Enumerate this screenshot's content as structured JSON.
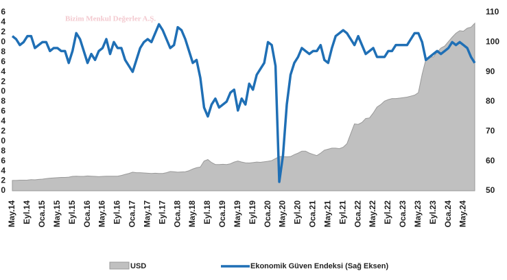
{
  "chart_data": {
    "type": "area-line",
    "watermark": "Bizim Menkul Değerler A.Ş.",
    "categories": [
      "May.14",
      null,
      null,
      null,
      "Eyl.14",
      null,
      null,
      null,
      "Oca.15",
      null,
      null,
      null,
      "May.15",
      null,
      null,
      null,
      "Eyl.15",
      null,
      null,
      null,
      "Oca.16",
      null,
      null,
      null,
      "May.16",
      null,
      null,
      null,
      "Eyl.16",
      null,
      null,
      null,
      "Oca.17",
      null,
      null,
      null,
      "May.17",
      null,
      null,
      null,
      "Eyl.17",
      null,
      null,
      null,
      "Oca.18",
      null,
      null,
      null,
      "May.18",
      null,
      null,
      null,
      "Eyl.18",
      null,
      null,
      null,
      "Oca.19",
      null,
      null,
      null,
      "May.19",
      null,
      null,
      null,
      "Eyl.19",
      null,
      null,
      null,
      "Oca.20",
      null,
      null,
      null,
      "May.20",
      null,
      null,
      null,
      "Eyl.20",
      null,
      null,
      null,
      "Oca.21",
      null,
      null,
      null,
      "May.21",
      null,
      null,
      null,
      "Eyl.21",
      null,
      null,
      null,
      "Oca.22",
      null,
      null,
      null,
      "May.22",
      null,
      null,
      null,
      "Eyl.22",
      null,
      null,
      null,
      "Oca.23",
      null,
      null,
      null,
      "May.23",
      null,
      null,
      null,
      "Eyl.23",
      null,
      null,
      null,
      "Oca.24",
      null,
      null,
      null,
      "May.24",
      null,
      null,
      null
    ],
    "series": [
      {
        "name": "USD",
        "color": "#c0c0c0",
        "values": [
          2.1,
          2.1,
          2.15,
          2.15,
          2.17,
          2.25,
          2.22,
          2.3,
          2.35,
          2.45,
          2.55,
          2.6,
          2.65,
          2.7,
          2.7,
          2.75,
          2.9,
          2.95,
          2.9,
          2.9,
          3.0,
          2.95,
          2.9,
          2.85,
          2.9,
          2.95,
          2.95,
          2.95,
          2.95,
          3.1,
          3.3,
          3.5,
          3.75,
          3.65,
          3.65,
          3.6,
          3.55,
          3.5,
          3.55,
          3.5,
          3.5,
          3.65,
          3.9,
          3.85,
          3.75,
          3.8,
          3.85,
          4.05,
          4.4,
          4.65,
          4.8,
          6.0,
          6.3,
          5.7,
          5.3,
          5.3,
          5.35,
          5.3,
          5.45,
          5.8,
          6.0,
          5.8,
          5.65,
          5.6,
          5.7,
          5.8,
          5.75,
          5.85,
          5.95,
          6.1,
          6.5,
          6.9,
          6.9,
          6.85,
          6.9,
          7.3,
          7.6,
          8.0,
          8.0,
          7.6,
          7.35,
          7.1,
          7.6,
          8.2,
          8.4,
          8.6,
          8.6,
          8.5,
          8.8,
          9.5,
          11.5,
          13.5,
          13.4,
          13.8,
          14.6,
          14.7,
          15.7,
          16.9,
          17.4,
          18.1,
          18.4,
          18.6,
          18.6,
          18.7,
          18.8,
          18.9,
          19.1,
          19.3,
          19.8,
          23.5,
          26.5,
          27.0,
          27.0,
          28.0,
          28.8,
          29.2,
          30.1,
          31.0,
          31.8,
          32.3,
          32.2,
          32.8,
          33.0,
          33.8
        ]
      },
      {
        "name": "Ekonomik Güven Endeksi (Sağ Eksen)",
        "color": "#1f6fb5",
        "axis": "y2",
        "values": [
          102,
          101,
          99,
          100,
          102,
          102,
          98,
          99,
          100,
          100,
          97,
          98,
          98,
          97,
          97,
          93,
          97,
          103,
          101,
          97,
          93,
          96,
          94,
          97,
          98,
          101,
          96,
          100,
          98,
          98,
          94,
          92,
          90,
          94,
          98,
          100,
          101,
          100,
          103,
          106,
          104,
          101,
          98,
          99,
          105,
          104,
          101,
          97,
          93,
          94,
          88,
          78,
          75,
          79,
          81,
          78,
          79,
          80,
          83,
          84,
          77,
          81,
          79,
          86,
          84,
          89,
          91,
          93,
          100,
          99,
          92,
          53,
          62,
          79,
          89,
          93,
          95,
          98,
          97,
          96,
          97,
          97,
          99,
          94,
          93,
          98,
          102,
          103,
          104,
          103,
          101,
          99,
          102,
          99,
          96,
          97,
          98,
          95,
          95,
          95,
          97,
          97,
          99,
          99,
          99,
          99,
          101,
          103,
          103,
          100,
          94,
          95,
          96,
          97,
          96,
          97,
          98,
          100,
          99,
          100,
          99,
          98,
          95,
          93
        ]
      }
    ],
    "ylim": [
      0,
      36
    ],
    "yticks": [
      0,
      2,
      4,
      6,
      8,
      {
        "value": 10,
        "label": "0"
      },
      {
        "value": 12,
        "label": "2"
      },
      {
        "value": 14,
        "label": "4"
      },
      {
        "value": 16,
        "label": "6"
      },
      {
        "value": 18,
        "label": "8"
      },
      {
        "value": 20,
        "label": "0"
      },
      {
        "value": 22,
        "label": "2"
      },
      {
        "value": 24,
        "label": "4"
      },
      {
        "value": 26,
        "label": "6"
      },
      {
        "value": 28,
        "label": "8"
      },
      {
        "value": 30,
        "label": "0"
      },
      {
        "value": 32,
        "label": "2"
      },
      {
        "value": 34,
        "label": "4"
      },
      {
        "value": 36,
        "label": "6"
      }
    ],
    "y2lim": [
      50,
      110
    ],
    "y2ticks": [
      50,
      60,
      70,
      80,
      90,
      100,
      110
    ]
  }
}
